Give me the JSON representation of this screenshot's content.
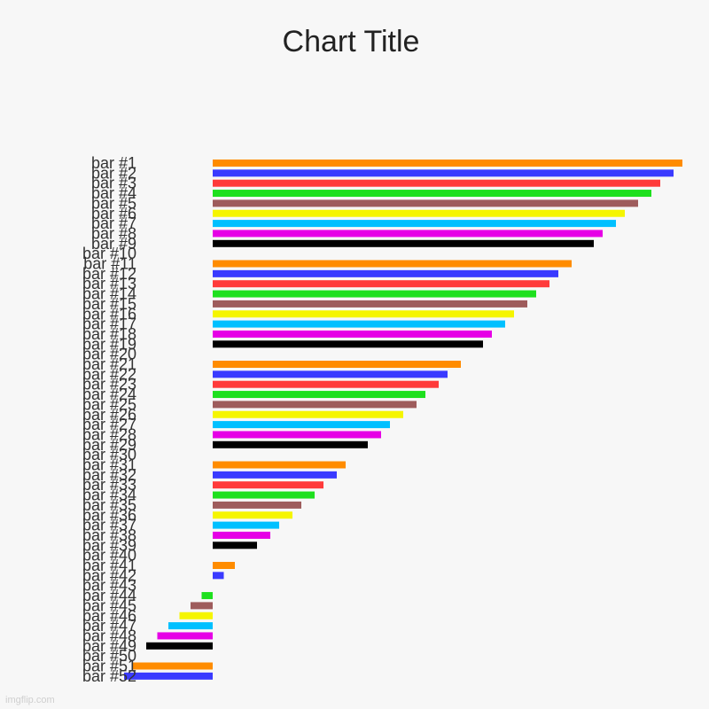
{
  "chart_data": {
    "type": "bar",
    "orientation": "horizontal",
    "title": "Chart Title",
    "xlabel": "",
    "ylabel": "",
    "grid": false,
    "legend": "none",
    "categories": [
      "bar #1",
      "bar #2",
      "bar #3",
      "bar #4",
      "bar #5",
      "bar #6",
      "bar #7",
      "bar #8",
      "bar #9",
      "bar #10",
      "bar #11",
      "bar #12",
      "bar #13",
      "bar #14",
      "bar #15",
      "bar #16",
      "bar #17",
      "bar #18",
      "bar #19",
      "bar #20",
      "bar #21",
      "bar #22",
      "bar #23",
      "bar #24",
      "bar #25",
      "bar #26",
      "bar #27",
      "bar #28",
      "bar #29",
      "bar #30",
      "bar #31",
      "bar #32",
      "bar #33",
      "bar #34",
      "bar #35",
      "bar #36",
      "bar #37",
      "bar #38",
      "bar #39",
      "bar #40",
      "bar #41",
      "bar #42",
      "bar #43",
      "bar #44",
      "bar #45",
      "bar #46",
      "bar #47",
      "bar #48",
      "bar #49",
      "bar #50",
      "bar #51",
      "bar #52"
    ],
    "values": [
      106,
      104,
      101,
      99,
      96,
      93,
      91,
      88,
      86,
      0,
      81,
      78,
      76,
      73,
      71,
      68,
      66,
      63,
      61,
      0,
      56,
      53,
      51,
      48,
      46,
      43,
      40,
      38,
      35,
      0,
      30,
      28,
      25,
      23,
      20,
      18,
      15,
      13,
      10,
      0,
      5,
      2.5,
      0,
      -2.5,
      -5,
      -7.5,
      -10,
      -12.5,
      -15,
      0,
      -18,
      -20
    ],
    "xlim": [
      -20,
      106
    ],
    "colors": [
      "#ff8c00",
      "#3a3aff",
      "#ff3a3a",
      "#1ee01e",
      "#9e5c5c",
      "#f5f500",
      "#00c0ff",
      "#e600e6",
      "#000000",
      "#ffffff"
    ]
  },
  "watermark": "imgflip.com"
}
